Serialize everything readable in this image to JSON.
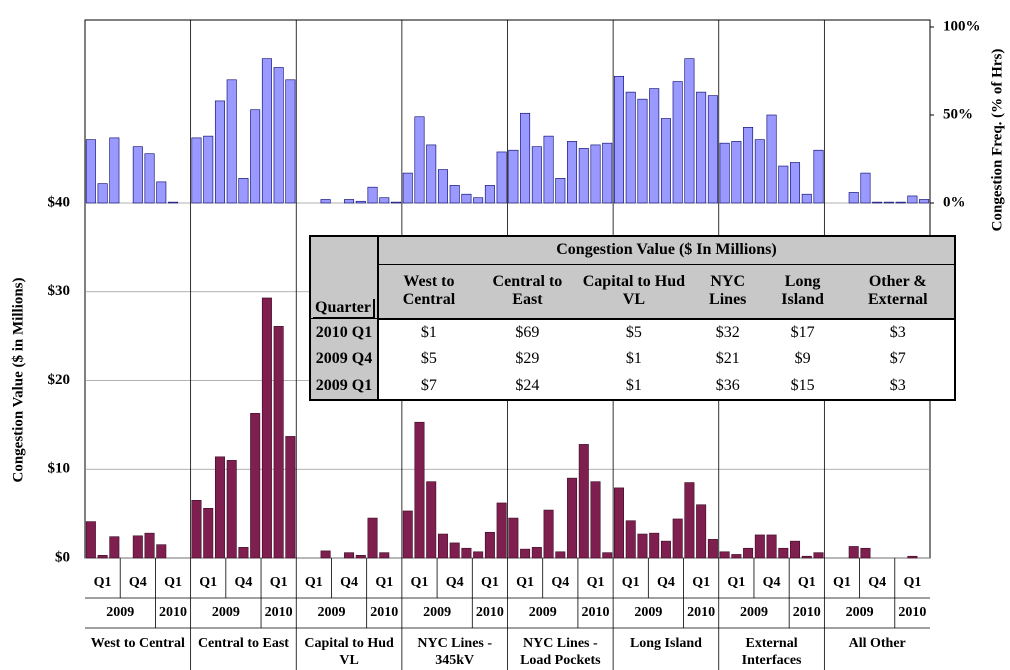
{
  "chart_data": {
    "type": "bar",
    "groups": [
      "West to Central",
      "Central to East",
      "Capital to Hud VL",
      "NYC Lines - 345kV",
      "NYC Lines - Load Pockets",
      "Long Island",
      "External Interfaces",
      "All Other"
    ],
    "quarters": [
      "Q1",
      "Q4",
      "Q1"
    ],
    "years": [
      "2009",
      "2010"
    ],
    "y_label": "Congestion Value ($ in Millions)",
    "y2_label": "Congestion Freq. (% of Hrs)",
    "ylim": [
      0,
      40
    ],
    "yticks": [
      {
        "value": 0,
        "label": "$0"
      },
      {
        "value": 10,
        "label": "$10"
      },
      {
        "value": 20,
        "label": "$20"
      },
      {
        "value": 30,
        "label": "$30"
      },
      {
        "value": 40,
        "label": "$40"
      }
    ],
    "y2lim": [
      0,
      100
    ],
    "y2ticks": [
      {
        "value": 0,
        "label": "0%"
      },
      {
        "value": 50,
        "label": "50%"
      },
      {
        "value": 100,
        "label": "100%"
      }
    ],
    "grid": true,
    "series": [
      {
        "color": "#7f1f4f",
        "values": [
          4.1,
          0.3,
          2.4,
          0,
          2.5,
          2.8,
          1.5,
          0,
          0,
          6.5,
          5.6,
          11.4,
          11.0,
          1.2,
          16.3,
          29.3,
          26.1,
          13.7,
          0,
          0,
          0.8,
          0,
          0.6,
          0.3,
          4.5,
          0.6,
          0,
          5.3,
          15.3,
          8.6,
          2.7,
          1.7,
          1.1,
          0.7,
          2.9,
          6.2,
          4.5,
          1.0,
          1.2,
          5.4,
          0.7,
          9.0,
          12.8,
          8.6,
          0.6,
          7.9,
          4.2,
          2.7,
          2.8,
          1.9,
          4.4,
          8.5,
          6.0,
          2.1,
          0.7,
          0.4,
          1.1,
          2.6,
          2.6,
          1.1,
          1.9,
          0.2,
          0.6,
          0,
          0,
          1.3,
          1.1,
          0,
          0,
          0,
          0.2,
          0
        ]
      },
      {
        "color": "#9999ff",
        "axis": "y2",
        "values": [
          36,
          11,
          37,
          0,
          32,
          28,
          12,
          0.5,
          0,
          37,
          38,
          58,
          70,
          14,
          53,
          82,
          77,
          70,
          0,
          0,
          2,
          0,
          2,
          1,
          9,
          3,
          0.5,
          17,
          49,
          33,
          19,
          10,
          5,
          3,
          10,
          29,
          30,
          51,
          32,
          38,
          14,
          35,
          31,
          33,
          34,
          72,
          63,
          59,
          65,
          48,
          69,
          82,
          63,
          61,
          34,
          35,
          43,
          36,
          50,
          21,
          23,
          5,
          30,
          0,
          0,
          6,
          17,
          0.5,
          0.5,
          0.5,
          4,
          2
        ]
      }
    ]
  },
  "table": {
    "title": "Congestion Value ($ In Millions)",
    "header": [
      "Quarter",
      "West to Central",
      "Central to East",
      "Capital to Hud VL",
      "NYC Lines",
      "Long Island",
      "Other & External"
    ],
    "rows": [
      [
        "2010 Q1",
        "$1",
        "$69",
        "$5",
        "$32",
        "$17",
        "$3"
      ],
      [
        "2009 Q4",
        "$5",
        "$29",
        "$1",
        "$21",
        "$9",
        "$7"
      ],
      [
        "2009 Q1",
        "$7",
        "$24",
        "$1",
        "$36",
        "$15",
        "$3"
      ]
    ]
  }
}
